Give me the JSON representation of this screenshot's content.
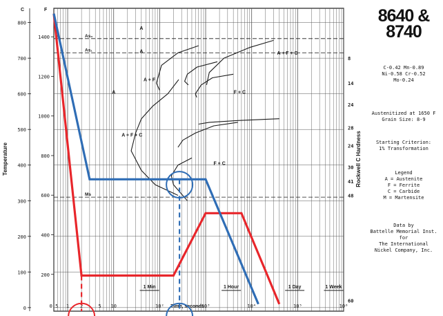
{
  "title_line1": "8640 &",
  "title_line2": "8740",
  "composition": [
    "C-0.42  Mn-0.89",
    "Ni-0.58  Cr-0.52",
    "Mo-0.24"
  ],
  "conditions": [
    "Austenitized at 1650 F",
    "Grain Size: 8-9"
  ],
  "criterion": [
    "Starting Criterion:",
    "1% Transformation"
  ],
  "legend": {
    "title": "Legend",
    "items": [
      "A = Austenite",
      "F = Ferrite",
      "C = Carbide",
      "M = Martensite"
    ]
  },
  "credit": [
    "Data by",
    "Battelle Memorial Inst.",
    "for",
    "The International",
    "Nickel Company, Inc."
  ],
  "colors": {
    "red": "#e8262b",
    "blue": "#2f6db5",
    "ink": "#1a1a1a"
  },
  "chart_data": {
    "type": "line",
    "xlabel": "Time, seconds",
    "ylabel_left": "Temperature",
    "ylabel_right": "Rockwell C Hardness",
    "x_scale": "log",
    "xlim": [
      0.5,
      1000000
    ],
    "x_ticks": [
      {
        "v": 0.5,
        "label": "0.5"
      },
      {
        "v": 1,
        "label": "1"
      },
      {
        "v": 2,
        "label": "2"
      },
      {
        "v": 5,
        "label": "5"
      },
      {
        "v": 10,
        "label": "10"
      },
      {
        "v": 100,
        "label": "10²"
      },
      {
        "v": 1000,
        "label": "10³"
      },
      {
        "v": 10000,
        "label": "10⁴"
      },
      {
        "v": 100000,
        "label": "10⁵"
      },
      {
        "v": 1000000,
        "label": "10⁶"
      }
    ],
    "c_axis": {
      "unit": "C",
      "ylim": [
        -10,
        840
      ],
      "ticks": [
        0,
        100,
        200,
        300,
        400,
        500,
        600,
        700,
        800
      ]
    },
    "f_axis": {
      "unit": "F",
      "ticks": [
        200,
        400,
        600,
        800,
        1000,
        1200,
        1400
      ]
    },
    "time_markers": [
      {
        "label": "1 Min",
        "seconds": 60
      },
      {
        "label": "1 Hour",
        "seconds": 3600
      },
      {
        "label": "1 Day",
        "seconds": 86400
      },
      {
        "label": "1 Week",
        "seconds": 604800
      }
    ],
    "critical_temps": [
      {
        "label": "As₃",
        "temp_c": 755
      },
      {
        "label": "As₁",
        "temp_c": 715
      },
      {
        "label": "Ms",
        "temp_c": 310
      }
    ],
    "hardness_labels": [
      {
        "label": "8",
        "temp_c": 700
      },
      {
        "label": "14",
        "temp_c": 630
      },
      {
        "label": "24",
        "temp_c": 570
      },
      {
        "label": "28",
        "temp_c": 505
      },
      {
        "label": "24",
        "temp_c": 455
      },
      {
        "label": "30",
        "temp_c": 395
      },
      {
        "label": "41",
        "temp_c": 355
      },
      {
        "label": "48",
        "temp_c": 315
      },
      {
        "label": "60",
        "temp_c": 20
      }
    ],
    "regions": [
      {
        "label": "A",
        "t": 40,
        "temp_c": 780
      },
      {
        "label": "A",
        "t": 40,
        "temp_c": 715
      },
      {
        "label": "A",
        "t": 10,
        "temp_c": 600
      },
      {
        "label": "A + F",
        "t": 60,
        "temp_c": 635
      },
      {
        "label": "A + F + C",
        "t": 25,
        "temp_c": 480
      },
      {
        "label": "F + C",
        "t": 5500,
        "temp_c": 600
      },
      {
        "label": "A + F + C",
        "t": 60000,
        "temp_c": 710
      },
      {
        "label": "F + C",
        "t": 2000,
        "temp_c": 400
      }
    ],
    "series": [
      {
        "name": "",
        "color": "#e8262b",
        "points": [
          [
            0.5,
            825
          ],
          [
            2,
            90
          ],
          [
            200,
            90
          ],
          [
            1000,
            265
          ],
          [
            6000,
            265
          ],
          [
            40000,
            10
          ]
        ]
      },
      {
        "name": "",
        "color": "#2f6db5",
        "points": [
          [
            0.5,
            825
          ],
          [
            3,
            360
          ],
          [
            1000,
            360
          ],
          [
            14000,
            10
          ]
        ]
      }
    ],
    "dashed_line_blue": {
      "t": 270
    },
    "dashed_line_red": {
      "t": 2
    },
    "circles": [
      {
        "color": "#2f6db5",
        "t": 270,
        "temp_c": 345
      },
      {
        "color": "#2f6db5",
        "t": 270,
        "temp_c": -25
      },
      {
        "color": "#e8262b",
        "t": 2,
        "temp_c": -25
      }
    ],
    "curves_start": [
      [
        [
          700,
          735
        ],
        [
          250,
          715
        ],
        [
          110,
          680
        ],
        [
          85,
          630
        ],
        [
          100,
          610
        ]
      ],
      [
        [
          260,
          640
        ],
        [
          150,
          600
        ],
        [
          70,
          565
        ],
        [
          40,
          530
        ],
        [
          30,
          490
        ],
        [
          24,
          440
        ],
        [
          40,
          385
        ],
        [
          80,
          345
        ],
        [
          250,
          315
        ]
      ],
      [
        [
          1800,
          690
        ],
        [
          650,
          675
        ],
        [
          400,
          655
        ],
        [
          350,
          635
        ],
        [
          420,
          625
        ]
      ],
      [
        [
          4000,
          655
        ],
        [
          1400,
          645
        ],
        [
          800,
          625
        ],
        [
          600,
          600
        ],
        [
          640,
          590
        ]
      ],
      [
        [
          5000,
          520
        ],
        [
          1500,
          510
        ],
        [
          600,
          490
        ],
        [
          320,
          470
        ],
        [
          250,
          450
        ]
      ],
      [
        [
          500,
          420
        ],
        [
          250,
          400
        ],
        [
          180,
          370
        ],
        [
          200,
          345
        ],
        [
          400,
          300
        ]
      ]
    ],
    "curves_finish": [
      [
        [
          30000,
          750
        ],
        [
          9000,
          730
        ],
        [
          2500,
          700
        ],
        [
          1200,
          660
        ],
        [
          1050,
          625
        ]
      ],
      [
        [
          40000,
          530
        ],
        [
          5000,
          525
        ],
        [
          1200,
          520
        ],
        [
          700,
          515
        ]
      ]
    ]
  }
}
